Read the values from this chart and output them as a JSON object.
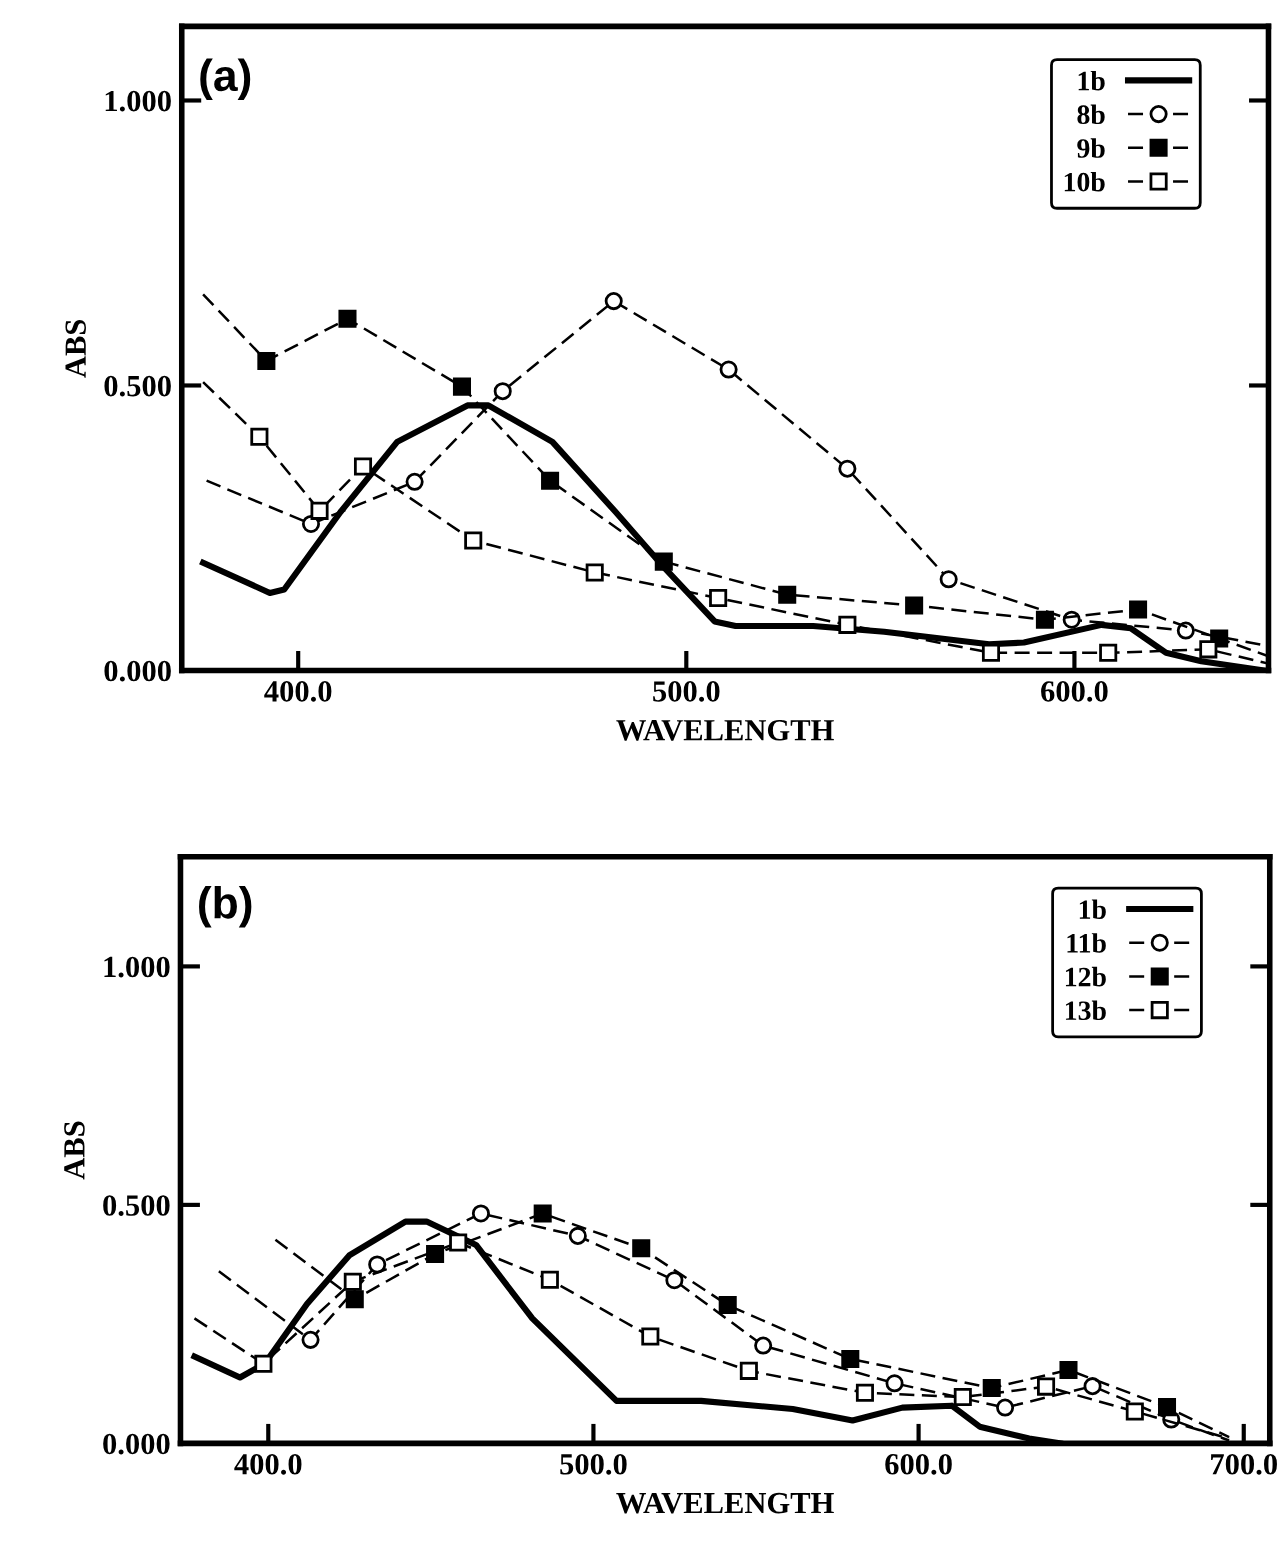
{
  "chart_data": [
    {
      "type": "line",
      "xlabel": "WAVELENGTH",
      "ylabel": "ABS",
      "annotations": [
        "(a)"
      ],
      "xlim": [
        370,
        650
      ],
      "xticks": [
        {
          "value": 400,
          "label": "400.0"
        },
        {
          "value": 500,
          "label": "500.0"
        },
        {
          "value": 600,
          "label": "600.0"
        }
      ],
      "ylim": [
        0,
        1.13
      ],
      "yticks": [
        {
          "value": 0,
          "label": "0.000"
        },
        {
          "value": 0.5,
          "label": "0.500"
        },
        {
          "value": 1.0,
          "label": "1.000"
        }
      ],
      "grid": false,
      "legend": "top right",
      "series": [
        {
          "name": "1b",
          "color": "#000000",
          "marker": "none",
          "line_style": "solid",
          "x": [
            375.5,
            392.7,
            396.4,
            410.9,
            425.5,
            443.6,
            449,
            465.5,
            481.8,
            494.5,
            507.3,
            512.7,
            532.7,
            551,
            578,
            587,
            607,
            614.5,
            623.6,
            632.7,
            649
          ],
          "values": [
            0.189,
            0.136,
            0.142,
            0.278,
            0.401,
            0.465,
            0.465,
            0.401,
            0.278,
            0.179,
            0.086,
            0.078,
            0.078,
            0.068,
            0.046,
            0.049,
            0.08,
            0.074,
            0.031,
            0.016,
            0.0
          ]
        },
        {
          "name": "8b",
          "color": "#000000",
          "marker": "circle",
          "line_style": "dashed",
          "x": [
            376.4,
            403.3,
            430,
            452.7,
            481.3,
            510.9,
            541.5,
            567.6,
            599.3,
            628.7,
            650
          ],
          "values": [
            0.333,
            0.257,
            0.331,
            0.49,
            0.648,
            0.528,
            0.354,
            0.16,
            0.089,
            0.07,
            0.043
          ]
        },
        {
          "name": "9b",
          "color": "#000000",
          "marker": "square",
          "line_style": "dashed",
          "x": [
            375.5,
            391.8,
            412.7,
            442.2,
            464.9,
            494.2,
            526,
            558.7,
            592.4,
            616.4,
            637.3,
            650
          ],
          "values": [
            0.66,
            0.543,
            0.617,
            0.498,
            0.333,
            0.191,
            0.133,
            0.114,
            0.089,
            0.107,
            0.056,
            0.025
          ]
        },
        {
          "name": "10b",
          "color": "#000000",
          "marker": "square",
          "line_style": "dashed",
          "x": [
            375.5,
            390,
            405.5,
            416.7,
            445.1,
            476.4,
            508.2,
            541.5,
            578.5,
            608.7,
            634.5,
            650
          ],
          "values": [
            0.506,
            0.41,
            0.28,
            0.358,
            0.228,
            0.172,
            0.127,
            0.08,
            0.031,
            0.031,
            0.037,
            0.012
          ]
        }
      ]
    },
    {
      "type": "line",
      "xlabel": "WAVELENGTH",
      "ylabel": "ABS",
      "annotations": [
        "(b)"
      ],
      "xlim": [
        373,
        708
      ],
      "xticks": [
        {
          "value": 400,
          "label": "400.0"
        },
        {
          "value": 500,
          "label": "500.0"
        },
        {
          "value": 600,
          "label": "600.0"
        },
        {
          "value": 700,
          "label": "700.0"
        }
      ],
      "ylim": [
        0,
        1.23
      ],
      "yticks": [
        {
          "value": 0,
          "label": "0.000"
        },
        {
          "value": 0.5,
          "label": "0.500"
        },
        {
          "value": 1.0,
          "label": "1.000"
        }
      ],
      "grid": false,
      "legend": "top right",
      "series": [
        {
          "name": "1b",
          "color": "#000000",
          "marker": "none",
          "line_style": "solid",
          "x": [
            377.3,
            391.3,
            398.9,
            411.9,
            424.9,
            442.2,
            448.7,
            463.9,
            481.2,
            507.1,
            533.1,
            561.3,
            579.7,
            595,
            610.2,
            618.8,
            634,
            643.5
          ],
          "values": [
            0.182,
            0.138,
            0.167,
            0.292,
            0.394,
            0.465,
            0.465,
            0.416,
            0.262,
            0.089,
            0.089,
            0.072,
            0.048,
            0.075,
            0.079,
            0.035,
            0.01,
            0.0
          ]
        },
        {
          "name": "11b",
          "color": "#000000",
          "marker": "circle",
          "line_style": "dashed",
          "x": [
            384.8,
            413,
            433.5,
            465.4,
            495.2,
            524.9,
            552.2,
            592.6,
            626.6,
            653.5,
            677.7,
            695.5
          ],
          "values": [
            0.361,
            0.217,
            0.375,
            0.482,
            0.435,
            0.342,
            0.205,
            0.126,
            0.075,
            0.12,
            0.05,
            0.006
          ]
        },
        {
          "name": "12b",
          "color": "#000000",
          "marker": "square",
          "line_style": "dashed",
          "x": [
            402.2,
            426.6,
            451.3,
            484.4,
            514.7,
            541.3,
            579,
            622.5,
            646.1,
            676.4,
            695.5
          ],
          "values": [
            0.427,
            0.302,
            0.397,
            0.482,
            0.409,
            0.29,
            0.177,
            0.116,
            0.154,
            0.076,
            0.013
          ]
        },
        {
          "name": "13b",
          "color": "#000000",
          "marker": "square",
          "line_style": "dashed",
          "x": [
            377.3,
            398.5,
            426,
            458.4,
            486.6,
            517.5,
            547.8,
            583.5,
            613.6,
            639.2,
            666.5,
            695.5
          ],
          "values": [
            0.262,
            0.167,
            0.339,
            0.421,
            0.343,
            0.224,
            0.152,
            0.106,
            0.097,
            0.119,
            0.067,
            0.01
          ]
        }
      ]
    }
  ]
}
